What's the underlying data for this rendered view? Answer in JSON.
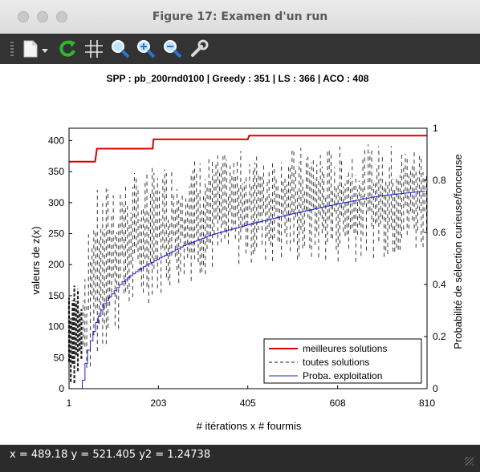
{
  "window": {
    "title": "Figure 17: Examen d'un run"
  },
  "toolbar": {
    "buttons": [
      {
        "icon": "new-document-icon"
      },
      {
        "icon": "refresh-icon"
      },
      {
        "icon": "grid-icon"
      },
      {
        "icon": "zoom-icon"
      },
      {
        "icon": "zoom-in-icon"
      },
      {
        "icon": "zoom-out-icon"
      },
      {
        "icon": "settings-wrench-icon"
      }
    ]
  },
  "status": {
    "text": "x = 489.18 y = 521.405 y2 = 1.24738"
  },
  "chart_data": {
    "type": "line",
    "title": "SPP : pb_200rnd0100 | Greedy : 351 | LS : 366 | ACO : 408",
    "xlabel": "# itérations x # fourmis",
    "ylabel": "valeurs de z(x)",
    "y2label": "Probabilité de sélection curieuse/fonceuse",
    "xlim": [
      1,
      810
    ],
    "ylim": [
      0,
      420
    ],
    "y2lim": [
      0,
      1
    ],
    "x_ticks": [
      "1",
      "203",
      "405",
      "608",
      "810"
    ],
    "y_ticks": [
      "0",
      "50",
      "100",
      "150",
      "200",
      "250",
      "300",
      "350",
      "400"
    ],
    "y2_ticks": [
      "0",
      "0.2",
      "0.4",
      "0.6",
      "0.8",
      "1"
    ],
    "legend_position": "bottom-right",
    "legend": [
      "meilleures solutions",
      "toutes solutions",
      "Proba. exploitation"
    ],
    "colors": {
      "best": "#dd0000",
      "all": "#222222",
      "proba": "#2222cc"
    },
    "series": [
      {
        "name": "meilleures solutions",
        "points": [
          [
            1,
            366
          ],
          [
            60,
            366
          ],
          [
            64,
            387
          ],
          [
            190,
            387
          ],
          [
            192,
            402
          ],
          [
            405,
            402
          ],
          [
            408,
            408
          ],
          [
            810,
            408
          ]
        ]
      },
      {
        "name": "toutes solutions",
        "envelope": [
          [
            1,
            175
          ],
          [
            30,
            178
          ],
          [
            35,
            205
          ],
          [
            60,
            320
          ],
          [
            100,
            340
          ],
          [
            200,
            360
          ],
          [
            300,
            375
          ],
          [
            400,
            385
          ],
          [
            500,
            390
          ],
          [
            600,
            392
          ],
          [
            700,
            395
          ],
          [
            810,
            395
          ]
        ],
        "min_envelope": [
          [
            1,
            0
          ],
          [
            30,
            5
          ],
          [
            60,
            30
          ],
          [
            100,
            80
          ],
          [
            150,
            120
          ],
          [
            203,
            150
          ],
          [
            300,
            180
          ],
          [
            405,
            200
          ],
          [
            500,
            200
          ],
          [
            608,
            200
          ],
          [
            700,
            210
          ],
          [
            810,
            220
          ]
        ]
      },
      {
        "name": "Proba. exploitation",
        "points": [
          [
            1,
            0
          ],
          [
            28,
            0
          ],
          [
            40,
            0.13
          ],
          [
            60,
            0.25
          ],
          [
            80,
            0.33
          ],
          [
            120,
            0.41
          ],
          [
            160,
            0.46
          ],
          [
            203,
            0.5
          ],
          [
            260,
            0.55
          ],
          [
            320,
            0.59
          ],
          [
            405,
            0.63
          ],
          [
            500,
            0.67
          ],
          [
            608,
            0.71
          ],
          [
            700,
            0.74
          ],
          [
            810,
            0.76
          ]
        ]
      }
    ]
  }
}
